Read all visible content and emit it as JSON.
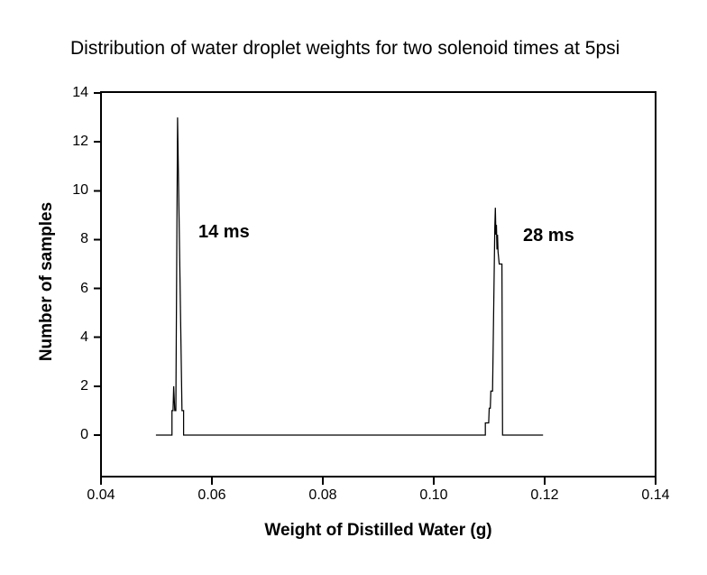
{
  "title": "Distribution of water droplet weights for two solenoid times at 5psi",
  "chart_data": {
    "type": "line",
    "title": "Distribution of water droplet weights for two solenoid times at 5psi",
    "xlabel": "Weight of Distilled Water (g)",
    "ylabel": "Number of samples",
    "xlim": [
      0.04,
      0.14
    ],
    "ylim": [
      -1.7,
      14
    ],
    "xticks": [
      0.04,
      0.06,
      0.08,
      0.1,
      0.12,
      0.14
    ],
    "xtick_labels": [
      "0.04",
      "0.06",
      "0.08",
      "0.10",
      "0.12",
      "0.14"
    ],
    "yticks": [
      0,
      2,
      4,
      6,
      8,
      10,
      12,
      14
    ],
    "ytick_labels": [
      "0",
      "2",
      "4",
      "6",
      "8",
      "10",
      "12",
      "14"
    ],
    "grid": false,
    "legend": "none",
    "line_color": "#000000",
    "background_color": "#ffffff",
    "frame": "full-box",
    "series": [
      {
        "name": "droplet-weight-distribution",
        "points": [
          [
            0.0499,
            0
          ],
          [
            0.0528,
            0
          ],
          [
            0.0528,
            1
          ],
          [
            0.053,
            1
          ],
          [
            0.0531,
            2
          ],
          [
            0.0533,
            1
          ],
          [
            0.0535,
            1
          ],
          [
            0.0538,
            13
          ],
          [
            0.0546,
            1
          ],
          [
            0.0549,
            1
          ],
          [
            0.0549,
            0
          ],
          [
            0.1093,
            0
          ],
          [
            0.1093,
            0.5
          ],
          [
            0.1099,
            0.5
          ],
          [
            0.11,
            1.1
          ],
          [
            0.1102,
            1.1
          ],
          [
            0.1103,
            1.8
          ],
          [
            0.1106,
            1.8
          ],
          [
            0.111,
            8.5
          ],
          [
            0.1111,
            9.3
          ],
          [
            0.1112,
            8.2
          ],
          [
            0.1113,
            8.6
          ],
          [
            0.1114,
            7.6
          ],
          [
            0.1115,
            8.2
          ],
          [
            0.1116,
            7.5
          ],
          [
            0.1118,
            7.0
          ],
          [
            0.1123,
            7.0
          ],
          [
            0.1124,
            0
          ],
          [
            0.1197,
            0
          ]
        ]
      }
    ],
    "peaks": [
      {
        "label": "14 ms",
        "peak_x_g": 0.054,
        "peak_count": 13
      },
      {
        "label": "28 ms",
        "peak_x_g": 0.111,
        "peak_count": 9
      }
    ],
    "annotations": [
      {
        "text": "14 ms",
        "x": 0.0576,
        "y": 8.72
      },
      {
        "text": "28 ms",
        "x": 0.1161,
        "y": 8.57
      }
    ]
  }
}
